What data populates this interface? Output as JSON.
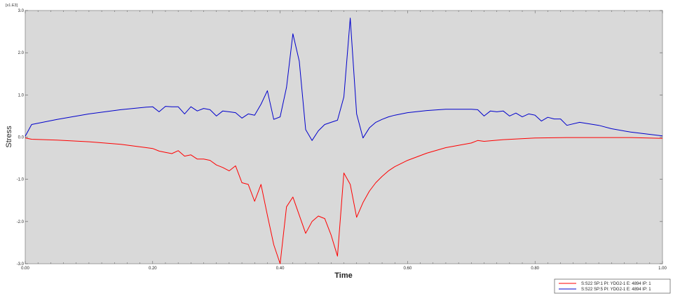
{
  "chart_data": {
    "type": "line",
    "title": "",
    "xlabel": "Time",
    "ylabel": "Stress",
    "y_scale_note": "[x1.E3]",
    "xlim": [
      0.0,
      1.0
    ],
    "ylim": [
      -3.0,
      3.0
    ],
    "x_ticks": [
      0.0,
      0.2,
      0.4,
      0.6,
      0.8,
      1.0
    ],
    "x_tick_labels": [
      "0.00",
      "0.20",
      "0.40",
      "0.60",
      "0.80",
      "1.00"
    ],
    "y_ticks": [
      3.0,
      2.0,
      1.0,
      0.0,
      -1.0,
      -2.0,
      -3.0
    ],
    "y_tick_labels": [
      "3.0",
      "2.0",
      "1.0",
      "0.0",
      "-1.0",
      "-2.0",
      "-3.0"
    ],
    "grid": false,
    "plot_background": "#d9d9d9",
    "legend_position": "bottom-right",
    "series": [
      {
        "name": "S:S22 SP:1 PI: YDG2-1 E: 4894 IP: 1",
        "color": "#ff0000",
        "x": [
          0,
          0.01,
          0.05,
          0.1,
          0.15,
          0.19,
          0.2,
          0.21,
          0.22,
          0.23,
          0.24,
          0.25,
          0.26,
          0.27,
          0.28,
          0.29,
          0.3,
          0.31,
          0.32,
          0.33,
          0.34,
          0.35,
          0.36,
          0.37,
          0.38,
          0.39,
          0.4,
          0.41,
          0.42,
          0.43,
          0.44,
          0.45,
          0.46,
          0.47,
          0.48,
          0.49,
          0.5,
          0.51,
          0.52,
          0.53,
          0.54,
          0.55,
          0.56,
          0.57,
          0.58,
          0.6,
          0.63,
          0.66,
          0.7,
          0.71,
          0.72,
          0.75,
          0.8,
          0.85,
          0.9,
          0.95,
          1.0
        ],
        "y": [
          -0.02,
          -0.05,
          -0.07,
          -0.11,
          -0.17,
          -0.25,
          -0.27,
          -0.33,
          -0.36,
          -0.39,
          -0.32,
          -0.45,
          -0.42,
          -0.52,
          -0.52,
          -0.55,
          -0.66,
          -0.72,
          -0.8,
          -0.68,
          -1.08,
          -1.12,
          -1.52,
          -1.12,
          -1.85,
          -2.55,
          -3.0,
          -1.65,
          -1.42,
          -1.85,
          -2.28,
          -2.0,
          -1.87,
          -1.93,
          -2.32,
          -2.82,
          -0.85,
          -1.12,
          -1.9,
          -1.55,
          -1.28,
          -1.08,
          -0.93,
          -0.8,
          -0.7,
          -0.55,
          -0.38,
          -0.25,
          -0.14,
          -0.08,
          -0.1,
          -0.06,
          -0.02,
          -0.01,
          -0.01,
          -0.01,
          -0.03
        ]
      },
      {
        "name": "S:S22 SP:5 PI: YDG2-1 E: 4894 IP: 1",
        "color": "#0000cc",
        "x": [
          0,
          0.01,
          0.05,
          0.1,
          0.15,
          0.19,
          0.2,
          0.21,
          0.22,
          0.23,
          0.24,
          0.25,
          0.26,
          0.27,
          0.28,
          0.29,
          0.3,
          0.31,
          0.32,
          0.33,
          0.34,
          0.35,
          0.36,
          0.37,
          0.38,
          0.39,
          0.4,
          0.41,
          0.42,
          0.43,
          0.44,
          0.45,
          0.46,
          0.47,
          0.48,
          0.49,
          0.5,
          0.51,
          0.52,
          0.53,
          0.54,
          0.55,
          0.56,
          0.57,
          0.58,
          0.6,
          0.63,
          0.66,
          0.7,
          0.71,
          0.72,
          0.73,
          0.74,
          0.75,
          0.76,
          0.77,
          0.78,
          0.79,
          0.8,
          0.81,
          0.82,
          0.83,
          0.84,
          0.85,
          0.87,
          0.9,
          0.92,
          0.95,
          1.0
        ],
        "y": [
          0.02,
          0.3,
          0.42,
          0.55,
          0.65,
          0.71,
          0.72,
          0.6,
          0.73,
          0.72,
          0.72,
          0.55,
          0.72,
          0.62,
          0.68,
          0.65,
          0.5,
          0.62,
          0.6,
          0.58,
          0.45,
          0.55,
          0.52,
          0.78,
          1.1,
          0.42,
          0.48,
          1.18,
          2.45,
          1.8,
          0.18,
          -0.08,
          0.15,
          0.3,
          0.35,
          0.4,
          0.95,
          2.82,
          0.55,
          -0.02,
          0.22,
          0.35,
          0.42,
          0.48,
          0.52,
          0.58,
          0.63,
          0.66,
          0.66,
          0.65,
          0.5,
          0.62,
          0.6,
          0.62,
          0.5,
          0.57,
          0.48,
          0.55,
          0.52,
          0.38,
          0.47,
          0.43,
          0.43,
          0.28,
          0.35,
          0.28,
          0.2,
          0.12,
          0.03
        ]
      }
    ]
  }
}
